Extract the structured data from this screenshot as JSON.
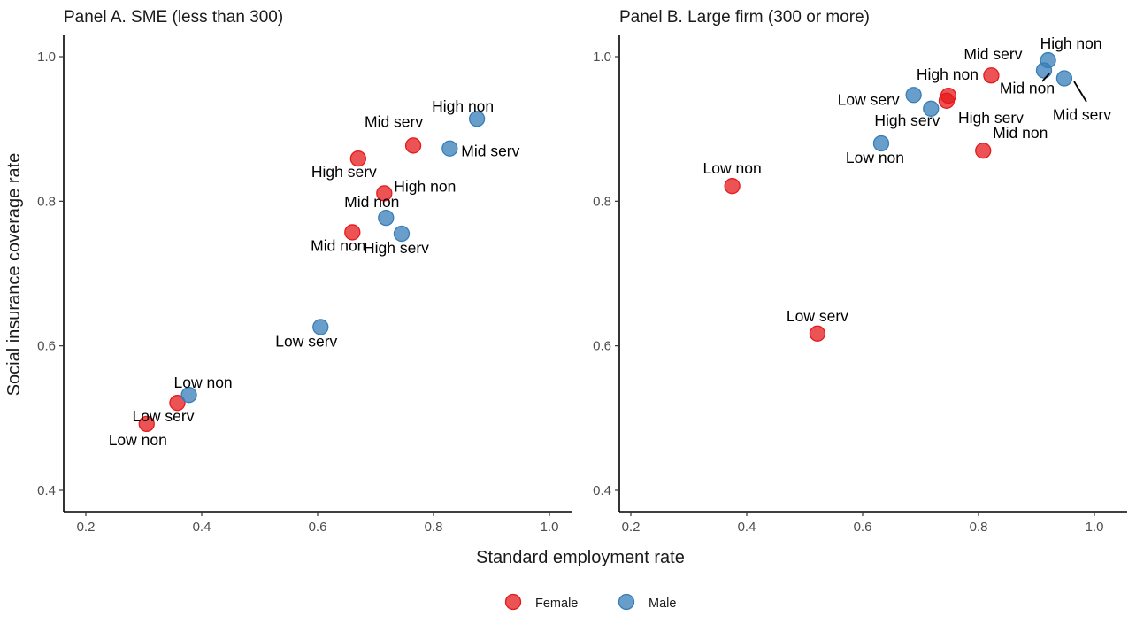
{
  "chart_data": {
    "type": "scatter",
    "xlabel": "Standard employment rate",
    "ylabel": "Social insurance coverage rate",
    "xlim": [
      0.16,
      1.04
    ],
    "ylim": [
      0.37,
      1.03
    ],
    "x_ticks": [
      "0.2",
      "0.4",
      "0.6",
      "0.8",
      "1.0"
    ],
    "y_ticks": [
      "0.4",
      "0.6",
      "0.8",
      "1.0"
    ],
    "grid": false,
    "legend": {
      "position": "bottom",
      "entries": [
        {
          "name": "Female",
          "color": "#E41A1C"
        },
        {
          "name": "Male",
          "color": "#377EB8"
        }
      ]
    },
    "panels": [
      {
        "title": "Panel A. SME (less than 300)",
        "series": [
          {
            "name": "Female",
            "color": "#E41A1C",
            "points": [
              {
                "label": "Low non",
                "x": 0.305,
                "y": 0.492
              },
              {
                "label": "Low serv",
                "x": 0.358,
                "y": 0.521
              },
              {
                "label": "Mid non",
                "x": 0.66,
                "y": 0.757
              },
              {
                "label": "High serv",
                "x": 0.67,
                "y": 0.859
              },
              {
                "label": "High non",
                "x": 0.715,
                "y": 0.811
              },
              {
                "label": "Mid serv",
                "x": 0.765,
                "y": 0.877
              }
            ]
          },
          {
            "name": "Male",
            "color": "#377EB8",
            "points": [
              {
                "label": "Low non",
                "x": 0.378,
                "y": 0.532
              },
              {
                "label": "Low serv",
                "x": 0.605,
                "y": 0.626
              },
              {
                "label": "Mid non",
                "x": 0.718,
                "y": 0.777
              },
              {
                "label": "High serv",
                "x": 0.745,
                "y": 0.755
              },
              {
                "label": "Mid serv",
                "x": 0.828,
                "y": 0.873
              },
              {
                "label": "High non",
                "x": 0.875,
                "y": 0.914
              }
            ]
          }
        ]
      },
      {
        "title": "Panel B. Large firm (300 or more)",
        "series": [
          {
            "name": "Female",
            "color": "#E41A1C",
            "points": [
              {
                "label": "Low non",
                "x": 0.375,
                "y": 0.821
              },
              {
                "label": "Low serv",
                "x": 0.522,
                "y": 0.617
              },
              {
                "label": "High serv",
                "x": 0.745,
                "y": 0.939
              },
              {
                "label": "High non",
                "x": 0.748,
                "y": 0.946
              },
              {
                "label": "Mid non",
                "x": 0.808,
                "y": 0.87
              },
              {
                "label": "Mid serv",
                "x": 0.822,
                "y": 0.974
              }
            ]
          },
          {
            "name": "Male",
            "color": "#377EB8",
            "points": [
              {
                "label": "Low non",
                "x": 0.632,
                "y": 0.88
              },
              {
                "label": "Low serv",
                "x": 0.688,
                "y": 0.947
              },
              {
                "label": "High serv",
                "x": 0.718,
                "y": 0.928
              },
              {
                "label": "Mid non",
                "x": 0.913,
                "y": 0.981
              },
              {
                "label": "High non",
                "x": 0.92,
                "y": 0.995
              },
              {
                "label": "Mid serv",
                "x": 0.948,
                "y": 0.97
              }
            ]
          }
        ]
      }
    ]
  }
}
